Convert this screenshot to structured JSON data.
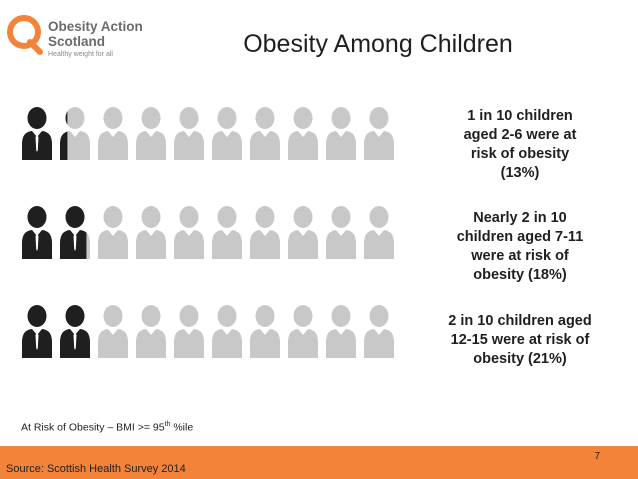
{
  "logo": {
    "line1": "Obesity Action",
    "line2": "Scotland",
    "tagline": "Healthy weight for all"
  },
  "title": "Obesity Among Children",
  "colors": {
    "accent": "#f4833a",
    "filled_figure": "#1f1f1f",
    "empty_figure": "#c8c8c8"
  },
  "chart_data": {
    "type": "pictogram",
    "figures_per_row": 10,
    "rows": [
      {
        "label": "1 in 10 children aged 2-6 were at risk of obesity (13%)",
        "percent": 13
      },
      {
        "label": "Nearly 2 in 10 children aged 7-11 were at risk of obesity (18%)",
        "percent": 18
      },
      {
        "label": "2 in 10 children aged 12-15 were at risk of obesity (21%)",
        "percent": 21
      }
    ]
  },
  "stats": [
    [
      "1 in 10 children",
      "aged 2-6 were at",
      "risk of obesity",
      "(13%)"
    ],
    [
      "Nearly 2 in 10",
      "children aged 7-11",
      "were at risk of",
      "obesity (18%)"
    ],
    [
      "2 in 10 children aged",
      "12-15 were at risk of",
      "obesity (21%)"
    ]
  ],
  "footnote": {
    "text": "At Risk of Obesity – BMI >= 95",
    "sup": "th",
    "suffix": " %ile"
  },
  "footer": {
    "source": "Source: Scottish Health Survey 2014",
    "page_number": "7"
  }
}
